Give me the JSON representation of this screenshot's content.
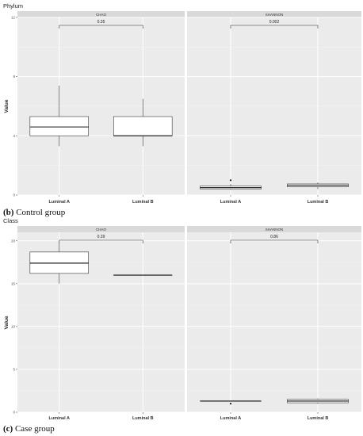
{
  "chart_data": [
    {
      "type": "box",
      "title": "Phylum",
      "ylabel": "Value",
      "categories": [
        "Luminal A",
        "Luminal B"
      ],
      "ylim": [
        0,
        12
      ],
      "yticks": [
        0,
        4,
        8,
        12
      ],
      "panels": [
        {
          "name": "CHAO",
          "pvalue": "0.35",
          "boxes": [
            {
              "category": "Luminal A",
              "min": 3.3,
              "q1": 4.0,
              "median": 4.6,
              "q3": 5.3,
              "max": 7.4,
              "outliers": []
            },
            {
              "category": "Luminal B",
              "min": 3.3,
              "q1": 4.0,
              "median": 4.0,
              "q3": 5.3,
              "max": 6.5,
              "outliers": []
            }
          ]
        },
        {
          "name": "SHANNON",
          "pvalue": "0.002",
          "boxes": [
            {
              "category": "Luminal A",
              "min": 0.35,
              "q1": 0.4,
              "median": 0.5,
              "q3": 0.6,
              "max": 0.75,
              "outliers": [
                1.0
              ]
            },
            {
              "category": "Luminal B",
              "min": 0.4,
              "q1": 0.55,
              "median": 0.65,
              "q3": 0.75,
              "max": 0.85,
              "outliers": []
            }
          ]
        }
      ]
    },
    {
      "type": "box",
      "title": "Class",
      "ylabel": "Value",
      "categories": [
        "Luminal A",
        "Luminal B"
      ],
      "ylim": [
        0,
        21
      ],
      "yticks": [
        0,
        5,
        10,
        15,
        20
      ],
      "panels": [
        {
          "name": "CHAO",
          "pvalue": "0.39",
          "boxes": [
            {
              "category": "Luminal A",
              "min": 15.0,
              "q1": 16.2,
              "median": 17.4,
              "q3": 18.7,
              "max": 20.0,
              "outliers": []
            },
            {
              "category": "Luminal B",
              "min": 16.0,
              "q1": 16.0,
              "median": 16.0,
              "q3": 16.0,
              "max": 16.0,
              "outliers": []
            }
          ]
        },
        {
          "name": "SHANNON",
          "pvalue": "0.86",
          "boxes": [
            {
              "category": "Luminal A",
              "min": 1.3,
              "q1": 1.3,
              "median": 1.3,
              "q3": 1.3,
              "max": 1.3,
              "outliers": [
                1.0
              ]
            },
            {
              "category": "Luminal B",
              "min": 1.0,
              "q1": 1.1,
              "median": 1.3,
              "q3": 1.5,
              "max": 1.6,
              "outliers": []
            }
          ]
        }
      ]
    }
  ],
  "captions": {
    "control_label": "(b)",
    "control_text": "Control group",
    "case_label": "(c)",
    "case_text": "Case group"
  }
}
